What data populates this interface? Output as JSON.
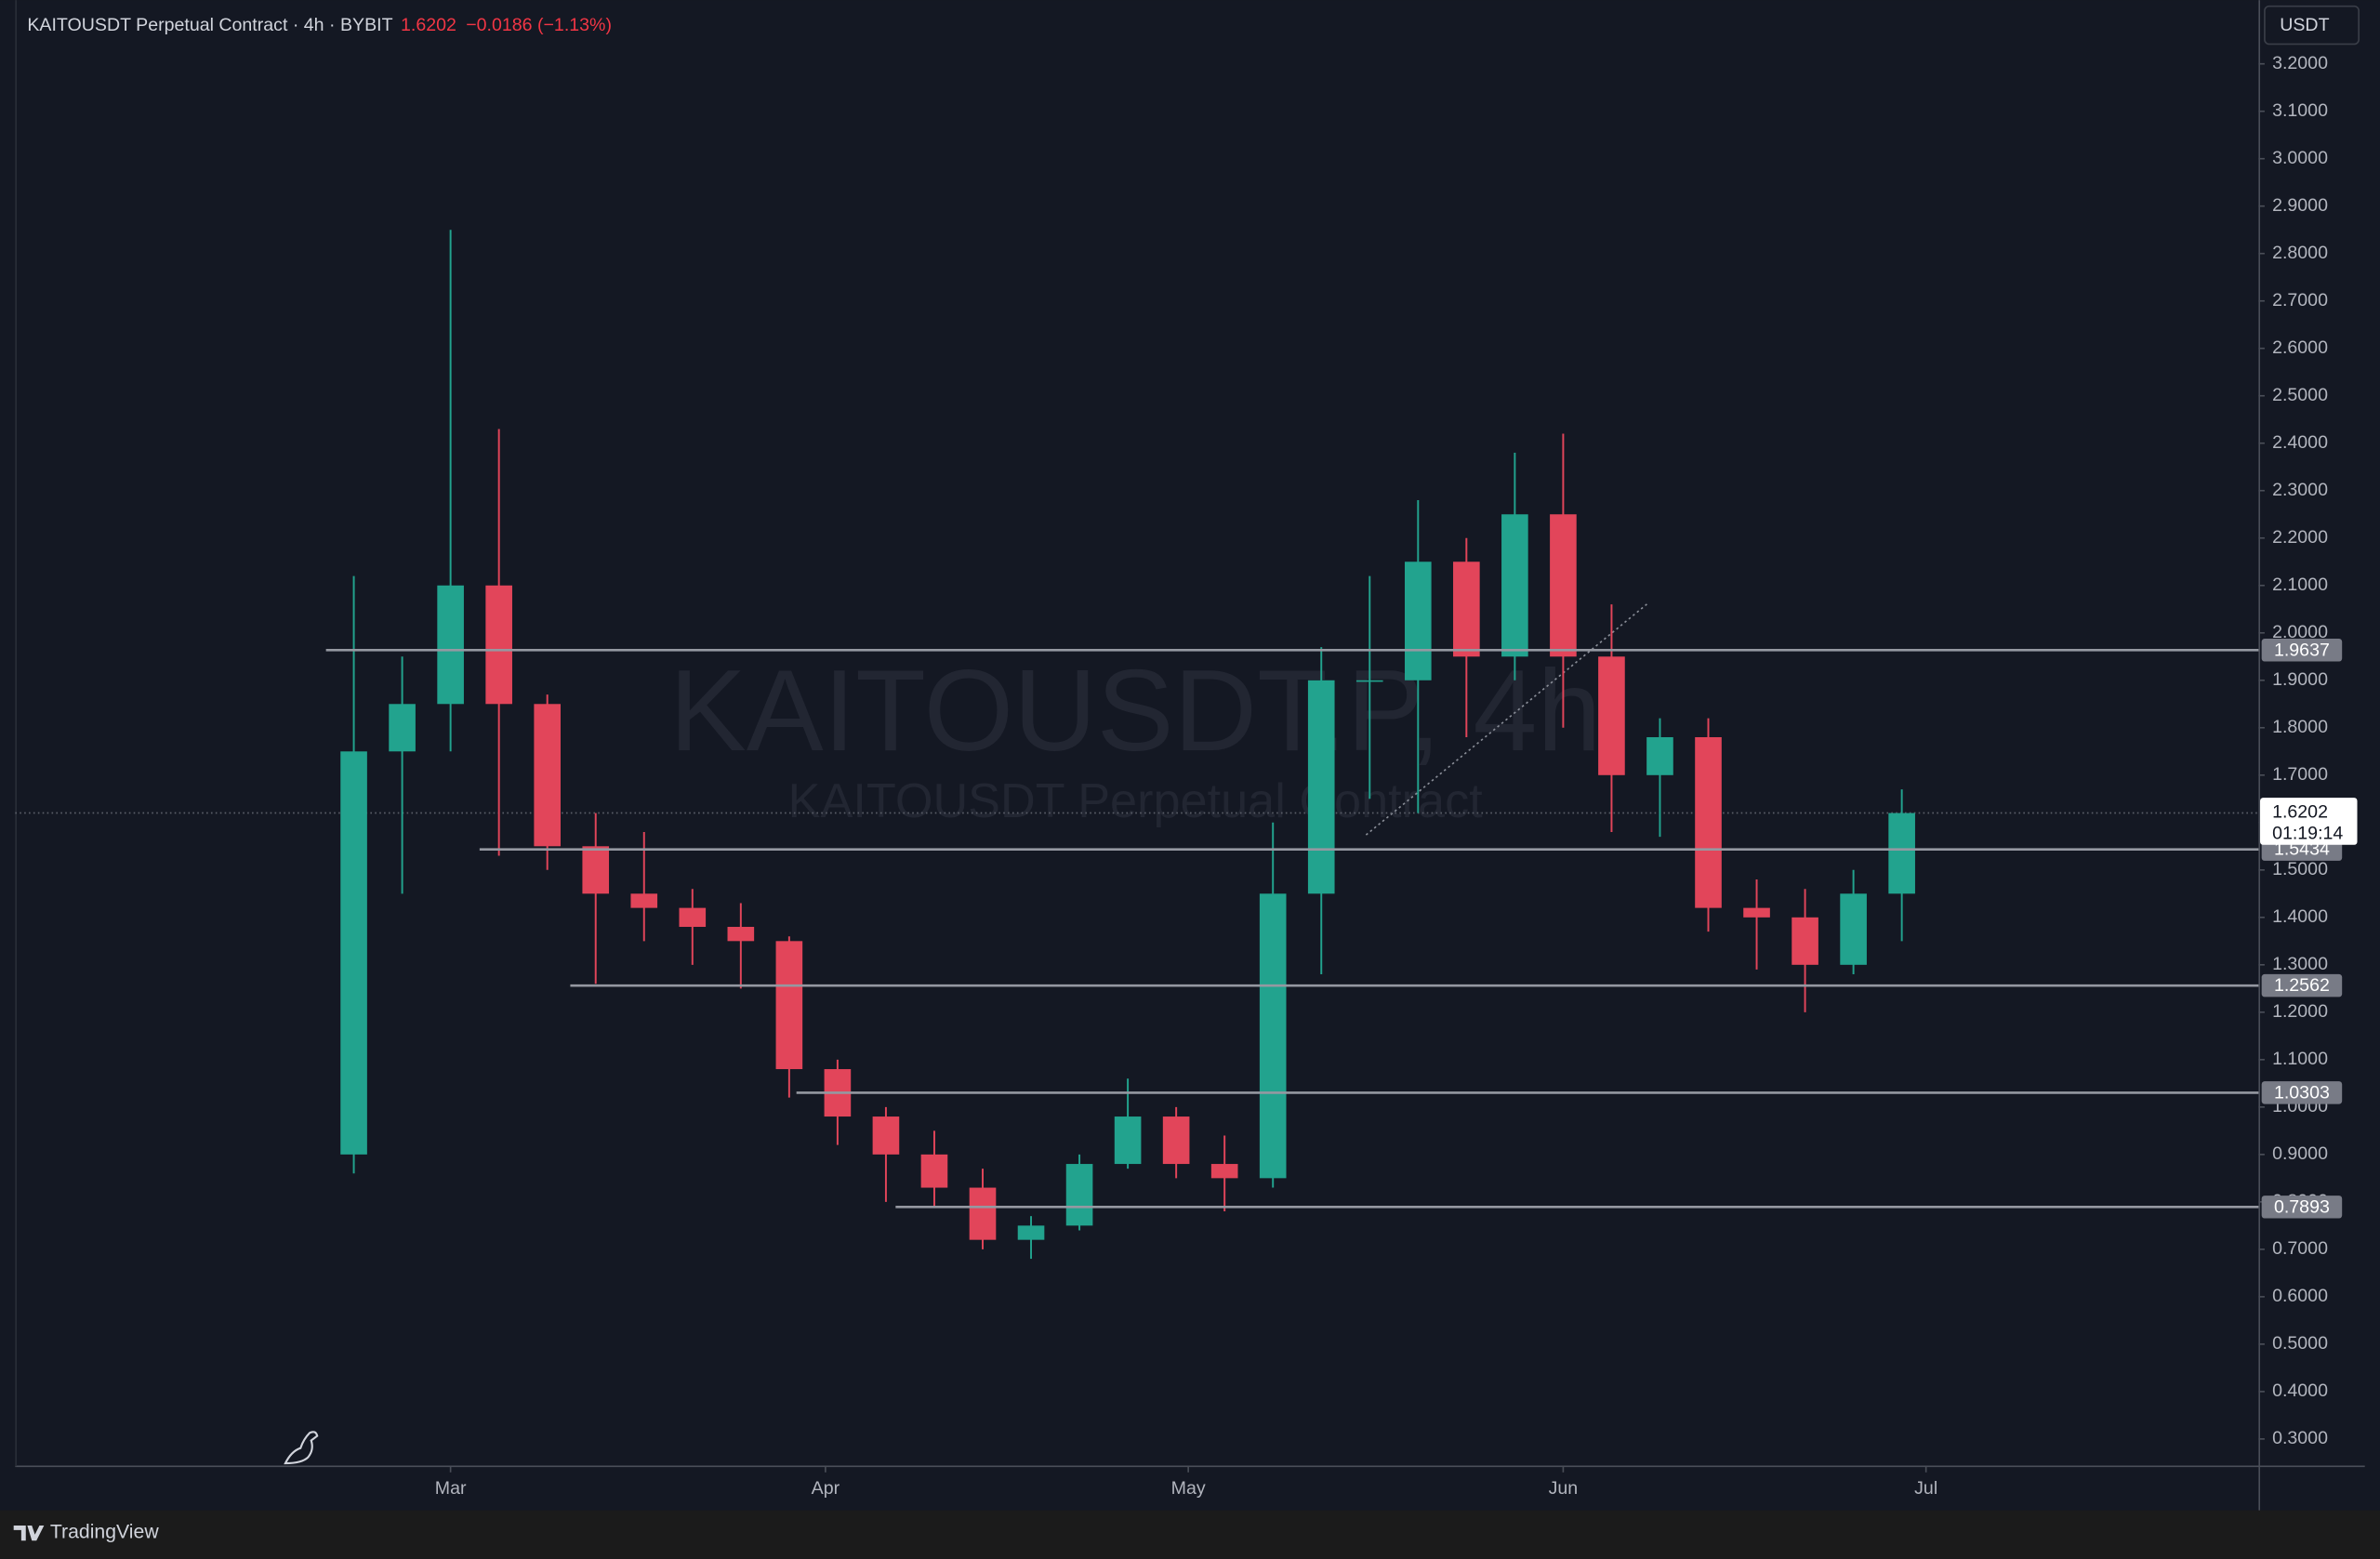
{
  "chart_data": {
    "type": "candlestick",
    "title": "KAITOUSDT Perpetual Contract · 4h · BYBIT",
    "last_price": 1.6202,
    "change_text": "−0.0186 (−1.13%)",
    "countdown": "01:19:14",
    "currency": "USDT",
    "watermark": [
      "KAITOUSDT.P, 4h",
      "KAITOUSDT Perpetual Contract"
    ],
    "brand": "TradingView",
    "up_color": "#22a38e",
    "down_color": "#e2455a",
    "x": [
      52,
      56,
      60,
      64,
      68,
      72,
      76,
      80,
      84,
      88,
      92,
      96,
      100,
      104,
      108,
      112,
      116,
      120,
      124,
      128,
      132,
      136,
      140,
      144,
      148,
      152,
      156,
      160,
      164,
      168,
      172,
      176,
      180
    ],
    "open": [
      0.9,
      1.75,
      1.85,
      2.1,
      1.85,
      1.55,
      1.45,
      1.42,
      1.38,
      1.35,
      1.08,
      0.98,
      0.9,
      0.83,
      0.72,
      0.75,
      0.88,
      0.98,
      0.88,
      0.85,
      1.45,
      1.9,
      1.9,
      2.15,
      1.95,
      2.25,
      1.95,
      1.7,
      1.78,
      1.42,
      1.4,
      1.3,
      1.45
    ],
    "high": [
      2.12,
      1.95,
      2.85,
      2.43,
      1.87,
      1.62,
      1.58,
      1.46,
      1.43,
      1.36,
      1.1,
      1.0,
      0.95,
      0.87,
      0.77,
      0.9,
      1.06,
      1.0,
      0.94,
      1.6,
      1.97,
      2.12,
      2.28,
      2.2,
      2.38,
      2.42,
      2.06,
      1.82,
      1.82,
      1.48,
      1.46,
      1.5,
      1.67
    ],
    "low": [
      0.86,
      1.45,
      1.75,
      1.53,
      1.5,
      1.26,
      1.35,
      1.3,
      1.25,
      1.02,
      0.92,
      0.8,
      0.79,
      0.7,
      0.68,
      0.74,
      0.87,
      0.85,
      0.78,
      0.83,
      1.28,
      1.65,
      1.62,
      1.78,
      1.9,
      1.8,
      1.58,
      1.57,
      1.37,
      1.29,
      1.2,
      1.28,
      1.35
    ],
    "close": [
      1.75,
      1.85,
      2.1,
      1.85,
      1.55,
      1.45,
      1.42,
      1.38,
      1.35,
      1.08,
      0.98,
      0.9,
      0.83,
      0.72,
      0.75,
      0.88,
      0.98,
      0.88,
      0.85,
      1.45,
      1.9,
      1.9,
      2.15,
      1.95,
      2.25,
      1.95,
      1.7,
      1.78,
      1.42,
      1.4,
      1.3,
      1.45,
      1.62
    ],
    "xlim": [
      24,
      209.5
    ],
    "xticks": [
      {
        "value": 60,
        "label": "Mar"
      },
      {
        "value": 91,
        "label": "Apr"
      },
      {
        "value": 121,
        "label": "May"
      },
      {
        "value": 152,
        "label": "Jun"
      },
      {
        "value": 182,
        "label": "Jul"
      }
    ],
    "ylim": [
      0.2424,
      3.3344
    ],
    "yticks": [
      {
        "value": 0.3,
        "label": "0.3000"
      },
      {
        "value": 0.4,
        "label": "0.4000"
      },
      {
        "value": 0.5,
        "label": "0.5000"
      },
      {
        "value": 0.6,
        "label": "0.6000"
      },
      {
        "value": 0.7,
        "label": "0.7000"
      },
      {
        "value": 0.8,
        "label": "0.8000"
      },
      {
        "value": 0.9,
        "label": "0.9000"
      },
      {
        "value": 1.0,
        "label": "1.0000"
      },
      {
        "value": 1.1,
        "label": "1.1000"
      },
      {
        "value": 1.2,
        "label": "1.2000"
      },
      {
        "value": 1.3,
        "label": "1.3000"
      },
      {
        "value": 1.4,
        "label": "1.4000"
      },
      {
        "value": 1.5,
        "label": "1.5000"
      },
      {
        "value": 1.6,
        "label": "1.6000"
      },
      {
        "value": 1.7,
        "label": "1.7000"
      },
      {
        "value": 1.8,
        "label": "1.8000"
      },
      {
        "value": 1.9,
        "label": "1.9000"
      },
      {
        "value": 2.0,
        "label": "2.0000"
      },
      {
        "value": 2.1,
        "label": "2.1000"
      },
      {
        "value": 2.2,
        "label": "2.2000"
      },
      {
        "value": 2.3,
        "label": "2.3000"
      },
      {
        "value": 2.4,
        "label": "2.4000"
      },
      {
        "value": 2.5,
        "label": "2.5000"
      },
      {
        "value": 2.6,
        "label": "2.6000"
      },
      {
        "value": 2.7,
        "label": "2.7000"
      },
      {
        "value": 2.8,
        "label": "2.8000"
      },
      {
        "value": 2.9,
        "label": "2.9000"
      },
      {
        "value": 3.0,
        "label": "3.0000"
      },
      {
        "value": 3.1,
        "label": "3.1000"
      },
      {
        "value": 3.2,
        "label": "3.2000"
      }
    ],
    "levels": [
      {
        "value": 1.9637,
        "start": 49.7
      },
      {
        "value": 1.5434,
        "start": 62.4
      },
      {
        "value": 1.2562,
        "start": 69.9
      },
      {
        "value": 1.0303,
        "start": 88.6
      },
      {
        "value": 0.7893,
        "start": 96.8
      }
    ]
  }
}
